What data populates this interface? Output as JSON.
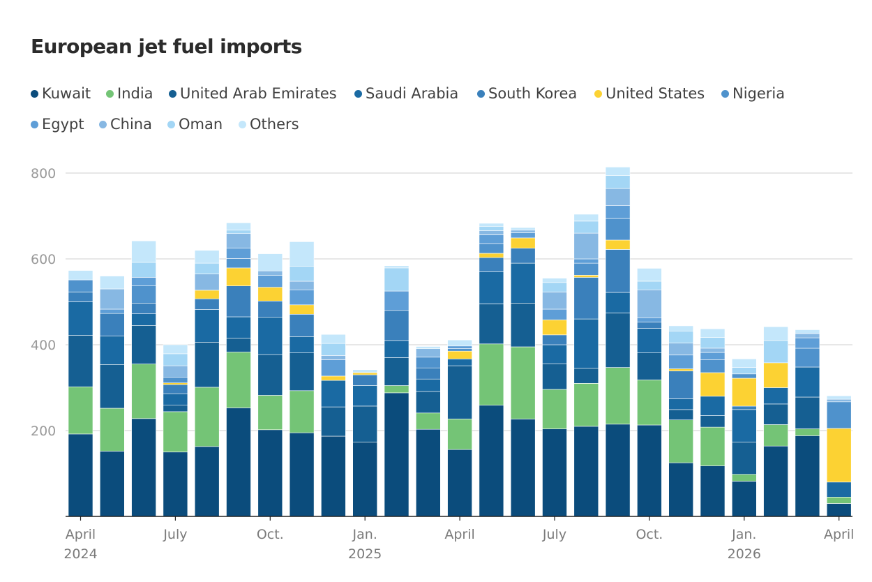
{
  "chart_data": {
    "type": "bar",
    "stacked": true,
    "title": "European jet fuel imports",
    "xlabel": "",
    "ylabel": "",
    "ylim": [
      0,
      800
    ],
    "yticks": [
      200,
      400,
      600,
      800
    ],
    "grid": true,
    "legend_position": "top",
    "categories": [
      "Apr 2024",
      "May 2024",
      "Jun 2024",
      "Jul 2024",
      "Aug 2024",
      "Sep 2024",
      "Oct 2024",
      "Nov 2024",
      "Dec 2024",
      "Jan 2025",
      "Feb 2025",
      "Mar 2025",
      "Apr 2025",
      "May 2025",
      "Jun 2025",
      "Jul 2025",
      "Aug 2025",
      "Sep 2025",
      "Oct 2025",
      "Nov 2025",
      "Dec 2025",
      "Jan 2026",
      "Feb 2026",
      "Mar 2026",
      "Apr 2026"
    ],
    "x_tick_labels": [
      {
        "index": 0,
        "line1": "April",
        "line2": "2024"
      },
      {
        "index": 3,
        "line1": "July",
        "line2": ""
      },
      {
        "index": 6,
        "line1": "Oct.",
        "line2": ""
      },
      {
        "index": 9,
        "line1": "Jan.",
        "line2": "2025"
      },
      {
        "index": 12,
        "line1": "April",
        "line2": ""
      },
      {
        "index": 15,
        "line1": "July",
        "line2": ""
      },
      {
        "index": 18,
        "line1": "Oct.",
        "line2": ""
      },
      {
        "index": 21,
        "line1": "Jan.",
        "line2": "2026"
      },
      {
        "index": 24,
        "line1": "April",
        "line2": ""
      }
    ],
    "series": [
      {
        "name": "Kuwait",
        "color": "#0b4c7c",
        "values": [
          192,
          152,
          228,
          150,
          163,
          253,
          202,
          195,
          187,
          173,
          288,
          203,
          156,
          259,
          227,
          204,
          210,
          215,
          213,
          125,
          118,
          82,
          164,
          188,
          30
        ]
      },
      {
        "name": "India",
        "color": "#74c476",
        "values": [
          110,
          100,
          127,
          94,
          138,
          130,
          80,
          98,
          0,
          0,
          17,
          38,
          71,
          143,
          168,
          92,
          100,
          132,
          105,
          100,
          90,
          16,
          50,
          16,
          15
        ]
      },
      {
        "name": "United Arab Emirates",
        "color": "#155f92",
        "values": [
          120,
          102,
          90,
          15,
          105,
          32,
          95,
          88,
          68,
          84,
          65,
          50,
          124,
          93,
          102,
          60,
          35,
          127,
          63,
          24,
          27,
          75,
          48,
          74,
          0
        ]
      },
      {
        "name": "Saudi Arabia",
        "color": "#1a6aa3",
        "values": [
          78,
          66,
          27,
          27,
          76,
          50,
          87,
          38,
          62,
          48,
          40,
          29,
          16,
          75,
          93,
          44,
          115,
          48,
          57,
          25,
          45,
          76,
          38,
          70,
          35
        ]
      },
      {
        "name": "South Korea",
        "color": "#3a80bb",
        "values": [
          23,
          53,
          25,
          21,
          25,
          72,
          38,
          52,
          0,
          25,
          70,
          26,
          0,
          33,
          35,
          23,
          97,
          100,
          15,
          65,
          0,
          8,
          0,
          0,
          0
        ]
      },
      {
        "name": "United States",
        "color": "#fcd233",
        "values": [
          0,
          0,
          0,
          4,
          20,
          42,
          32,
          22,
          10,
          5,
          0,
          0,
          18,
          10,
          24,
          35,
          5,
          22,
          0,
          5,
          55,
          65,
          58,
          0,
          125
        ]
      },
      {
        "name": "Nigeria",
        "color": "#4f92cc",
        "values": [
          28,
          0,
          40,
          13,
          0,
          22,
          0,
          0,
          0,
          0,
          0,
          25,
          6,
          23,
          0,
          0,
          28,
          50,
          0,
          0,
          30,
          10,
          0,
          44,
          62
        ]
      },
      {
        "name": "Egypt",
        "color": "#5e9ed7",
        "values": [
          0,
          10,
          20,
          0,
          0,
          24,
          28,
          35,
          38,
          0,
          45,
          0,
          6,
          20,
          12,
          25,
          10,
          30,
          10,
          32,
          17,
          0,
          0,
          24,
          0
        ]
      },
      {
        "name": "China",
        "color": "#87b8e3",
        "values": [
          0,
          47,
          0,
          27,
          38,
          34,
          10,
          20,
          10,
          0,
          0,
          20,
          0,
          10,
          6,
          40,
          60,
          40,
          65,
          28,
          10,
          0,
          0,
          10,
          6
        ]
      },
      {
        "name": "Oman",
        "color": "#a3d6f5",
        "values": [
          0,
          0,
          35,
          28,
          25,
          8,
          0,
          35,
          28,
          0,
          54,
          0,
          0,
          10,
          0,
          22,
          28,
          30,
          20,
          28,
          25,
          15,
          52,
          0,
          0
        ]
      },
      {
        "name": "Others",
        "color": "#c4e7fb",
        "values": [
          22,
          30,
          50,
          21,
          30,
          17,
          40,
          57,
          21,
          7,
          5,
          5,
          14,
          7,
          6,
          10,
          16,
          20,
          30,
          12,
          20,
          20,
          32,
          9,
          8
        ]
      }
    ]
  }
}
